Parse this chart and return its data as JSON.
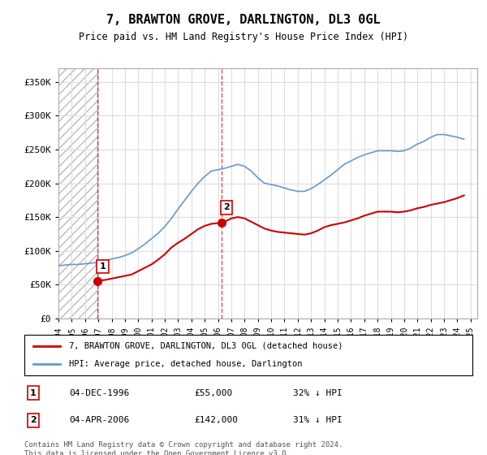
{
  "title": "7, BRAWTON GROVE, DARLINGTON, DL3 0GL",
  "subtitle": "Price paid vs. HM Land Registry's House Price Index (HPI)",
  "ylabel_ticks": [
    "£0",
    "£50K",
    "£100K",
    "£150K",
    "£200K",
    "£250K",
    "£300K",
    "£350K"
  ],
  "ytick_values": [
    0,
    50000,
    100000,
    150000,
    200000,
    250000,
    300000,
    350000
  ],
  "ylim": [
    0,
    370000
  ],
  "xlim_start": 1994.0,
  "xlim_end": 2025.5,
  "hatch_end": 1996.92,
  "purchase1_date": 1996.92,
  "purchase1_price": 55000,
  "purchase1_label": "1",
  "purchase2_date": 2006.25,
  "purchase2_price": 142000,
  "purchase2_label": "2",
  "red_line_color": "#cc0000",
  "blue_line_color": "#6699cc",
  "red_dot_color": "#cc0000",
  "hatch_color": "#cccccc",
  "grid_color": "#dddddd",
  "bg_color": "#ffffff",
  "legend_line1": "7, BRAWTON GROVE, DARLINGTON, DL3 0GL (detached house)",
  "legend_line2": "HPI: Average price, detached house, Darlington",
  "table_row1": [
    "1",
    "04-DEC-1996",
    "£55,000",
    "32% ↓ HPI"
  ],
  "table_row2": [
    "2",
    "04-APR-2006",
    "£142,000",
    "31% ↓ HPI"
  ],
  "footer": "Contains HM Land Registry data © Crown copyright and database right 2024.\nThis data is licensed under the Open Government Licence v3.0.",
  "red_x": [
    1996.92,
    1997.0,
    1997.5,
    1998.0,
    1998.5,
    1999.0,
    1999.5,
    2000.0,
    2000.5,
    2001.0,
    2001.5,
    2002.0,
    2002.5,
    2003.0,
    2003.5,
    2004.0,
    2004.5,
    2005.0,
    2005.5,
    2006.0,
    2006.25,
    2006.5,
    2007.0,
    2007.5,
    2008.0,
    2008.5,
    2009.0,
    2009.5,
    2010.0,
    2010.5,
    2011.0,
    2011.5,
    2012.0,
    2012.5,
    2013.0,
    2013.5,
    2014.0,
    2014.5,
    2015.0,
    2015.5,
    2016.0,
    2016.5,
    2017.0,
    2017.5,
    2018.0,
    2018.5,
    2019.0,
    2019.5,
    2020.0,
    2020.5,
    2021.0,
    2021.5,
    2022.0,
    2022.5,
    2023.0,
    2023.5,
    2024.0,
    2024.5
  ],
  "red_y": [
    55000,
    56000,
    57000,
    59000,
    61000,
    63000,
    65000,
    70000,
    75000,
    80000,
    87000,
    95000,
    105000,
    112000,
    118000,
    125000,
    132000,
    137000,
    140000,
    141000,
    142000,
    143000,
    148000,
    150000,
    148000,
    143000,
    138000,
    133000,
    130000,
    128000,
    127000,
    126000,
    125000,
    124000,
    126000,
    130000,
    135000,
    138000,
    140000,
    142000,
    145000,
    148000,
    152000,
    155000,
    158000,
    158000,
    158000,
    157000,
    158000,
    160000,
    163000,
    165000,
    168000,
    170000,
    172000,
    175000,
    178000,
    182000
  ],
  "blue_x": [
    1994.0,
    1994.5,
    1995.0,
    1995.5,
    1996.0,
    1996.5,
    1997.0,
    1997.5,
    1998.0,
    1998.5,
    1999.0,
    1999.5,
    2000.0,
    2000.5,
    2001.0,
    2001.5,
    2002.0,
    2002.5,
    2003.0,
    2003.5,
    2004.0,
    2004.5,
    2005.0,
    2005.5,
    2006.0,
    2006.5,
    2007.0,
    2007.5,
    2008.0,
    2008.5,
    2009.0,
    2009.5,
    2010.0,
    2010.5,
    2011.0,
    2011.5,
    2012.0,
    2012.5,
    2013.0,
    2013.5,
    2014.0,
    2014.5,
    2015.0,
    2015.5,
    2016.0,
    2016.5,
    2017.0,
    2017.5,
    2018.0,
    2018.5,
    2019.0,
    2019.5,
    2020.0,
    2020.5,
    2021.0,
    2021.5,
    2022.0,
    2022.5,
    2023.0,
    2023.5,
    2024.0,
    2024.5
  ],
  "blue_y": [
    78000,
    79000,
    80000,
    80000,
    81000,
    82000,
    83000,
    85000,
    88000,
    90000,
    93000,
    97000,
    103000,
    110000,
    118000,
    126000,
    136000,
    148000,
    162000,
    175000,
    188000,
    200000,
    210000,
    218000,
    220000,
    222000,
    225000,
    228000,
    225000,
    218000,
    208000,
    200000,
    198000,
    196000,
    193000,
    190000,
    188000,
    188000,
    192000,
    198000,
    205000,
    212000,
    220000,
    228000,
    233000,
    238000,
    242000,
    245000,
    248000,
    248000,
    248000,
    247000,
    248000,
    252000,
    258000,
    262000,
    268000,
    272000,
    272000,
    270000,
    268000,
    265000
  ]
}
